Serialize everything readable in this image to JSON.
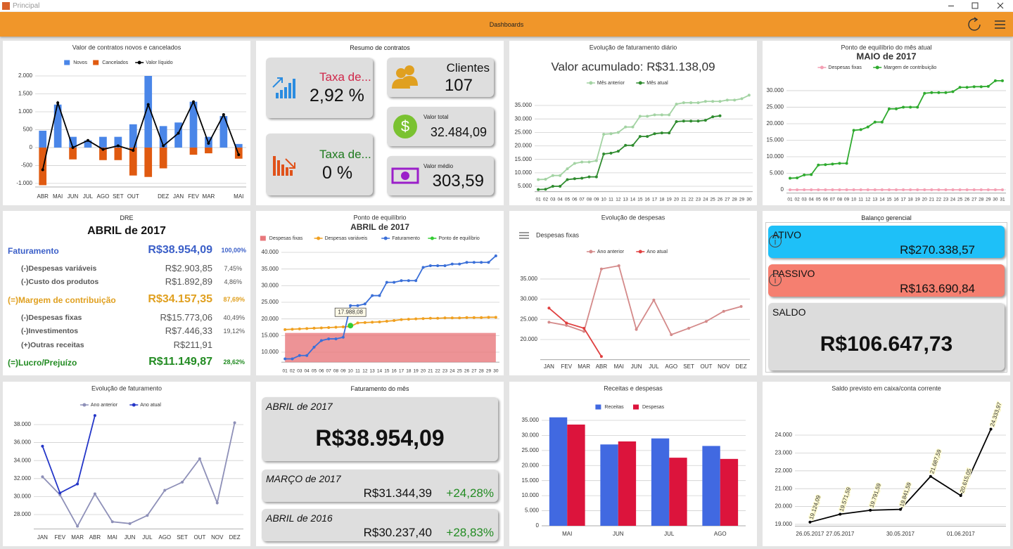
{
  "window": {
    "title": "Principal"
  },
  "header": {
    "title": "Dashboards"
  },
  "chart_data": [
    {
      "type": "bar",
      "title": "Valor de contratos  novos e cancelados",
      "legend": "top",
      "bar_mode": "overlay",
      "categories": [
        "ABR",
        "MAI",
        "JUN",
        "JUL",
        "AGO",
        "SET",
        "OUT",
        null,
        "DEZ",
        "JAN",
        "FEV",
        "MAR",
        null,
        "MAI"
      ],
      "series": [
        {
          "name": "Novos",
          "color": "#4a86e8",
          "values": [
            470,
            1200,
            300,
            200,
            300,
            300,
            650,
            2000,
            600,
            700,
            1280,
            300,
            880,
            100
          ]
        },
        {
          "name": "Cancelados",
          "color": "#e05a10",
          "values": [
            -1050,
            0,
            -330,
            0,
            -350,
            -350,
            -780,
            -820,
            -580,
            0,
            -200,
            -160,
            0,
            -310
          ]
        },
        {
          "name": "Valor líquido",
          "type": "line",
          "color": "#000000",
          "values": [
            -620,
            1250,
            0,
            200,
            -50,
            50,
            -80,
            1200,
            50,
            400,
            1280,
            120,
            920,
            -200
          ]
        }
      ],
      "ylim": [
        -1100,
        2000
      ],
      "yticks": [
        {
          "value": -1000,
          "label": "-1.000"
        },
        -500,
        0,
        500,
        {
          "value": 1000,
          "label": "1.000"
        },
        {
          "value": 1500,
          "label": "1.500"
        },
        {
          "value": 2000,
          "label": "2.000"
        }
      ],
      "grid": true,
      "markers": true
    },
    {
      "type": "line",
      "title": "Evolução de faturamento diário",
      "subtitle": "Valor acumulado: R$31.138,09",
      "legend": "top",
      "markers": true,
      "categories": [
        "01",
        "02",
        "03",
        "04",
        "05",
        "06",
        "07",
        "08",
        "09",
        "10",
        "11",
        "12",
        "13",
        "14",
        "15",
        "16",
        "17",
        "18",
        "19",
        "20",
        "21",
        "22",
        "23",
        "24",
        "25",
        "26",
        "27",
        "28",
        "29",
        "30"
      ],
      "series": [
        {
          "name": "Mês anterior",
          "color": "#a3d3a3",
          "values": [
            7500,
            7600,
            9000,
            9000,
            11500,
            13500,
            14000,
            14000,
            14500,
            24300,
            24500,
            25000,
            27000,
            27000,
            31000,
            31000,
            31500,
            31500,
            31500,
            35500,
            36000,
            36000,
            36000,
            36500,
            36500,
            36500,
            37000,
            37000,
            37500,
            38800
          ]
        },
        {
          "name": "Mês atual",
          "color": "#2e8b2e",
          "values": [
            3800,
            3900,
            5000,
            5000,
            7500,
            7800,
            8000,
            8500,
            8500,
            17000,
            17300,
            18000,
            20200,
            20200,
            23500,
            23500,
            24500,
            24800,
            24800,
            29000,
            29200,
            29200,
            29200,
            29500,
            30800,
            31138.09,
            null,
            null,
            null,
            null
          ]
        }
      ],
      "ylim": [
        3000,
        38000
      ],
      "yticks": [
        {
          "value": 5000,
          "label": "5.000"
        },
        {
          "value": 10000,
          "label": "10.000"
        },
        {
          "value": 15000,
          "label": "15.000"
        },
        {
          "value": 20000,
          "label": "20.000"
        },
        {
          "value": 25000,
          "label": "25.000"
        },
        {
          "value": 30000,
          "label": "30.000"
        },
        {
          "value": 35000,
          "label": "35.000"
        }
      ],
      "grid": true
    },
    {
      "type": "line",
      "title": "Ponto de equilíbrio do mês atual",
      "subtitle": "MAIO de 2017",
      "legend": "top",
      "markers": true,
      "categories": [
        "01",
        "02",
        "03",
        "04",
        "05",
        "06",
        "07",
        "08",
        "09",
        "10",
        "11",
        "12",
        "13",
        "14",
        "15",
        "16",
        "17",
        "18",
        "19",
        "20",
        "21",
        "22",
        "23",
        "24",
        "25",
        "26",
        "27",
        "28",
        "29",
        "30",
        "31"
      ],
      "series": [
        {
          "name": "Despesas fixas",
          "color": "#f4a0b4",
          "values": [
            0,
            0,
            0,
            0,
            0,
            0,
            0,
            0,
            0,
            0,
            0,
            0,
            0,
            0,
            0,
            0,
            0,
            0,
            0,
            0,
            0,
            0,
            0,
            0,
            0,
            0,
            0,
            0,
            0,
            0,
            0
          ]
        },
        {
          "name": "Margem de contribuição",
          "color": "#2eaa2e",
          "values": [
            3500,
            3600,
            4500,
            4600,
            7500,
            7600,
            7800,
            8000,
            8000,
            18000,
            18200,
            19000,
            20500,
            20500,
            24500,
            24500,
            25000,
            25000,
            25000,
            29200,
            29400,
            29400,
            29400,
            29700,
            31000,
            31000,
            31200,
            31200,
            31300,
            33000,
            33000
          ]
        }
      ],
      "ylim": [
        -1000,
        33500
      ],
      "yticks": [
        0,
        {
          "value": 5000,
          "label": "5.000"
        },
        {
          "value": 10000,
          "label": "10.000"
        },
        {
          "value": 15000,
          "label": "15.000"
        },
        {
          "value": 20000,
          "label": "20.000"
        },
        {
          "value": 25000,
          "label": "25.000"
        },
        {
          "value": 30000,
          "label": "30.000"
        }
      ],
      "grid": true
    },
    {
      "type": "line",
      "title": "Ponto de equilíbrio",
      "subtitle": "ABRIL de 2017",
      "legend": "top",
      "markers": true,
      "categories": [
        "01",
        "02",
        "03",
        "04",
        "05",
        "06",
        "07",
        "08",
        "09",
        "10",
        "11",
        "12",
        "13",
        "14",
        "15",
        "16",
        "17",
        "18",
        "19",
        "20",
        "21",
        "22",
        "23",
        "24",
        "25",
        "26",
        "27",
        "28",
        "29",
        "30"
      ],
      "series": [
        {
          "name": "Despesas fixas",
          "type": "area",
          "color": "#e8787c",
          "values": [
            15773.06,
            15773.06,
            15773.06,
            15773.06,
            15773.06,
            15773.06,
            15773.06,
            15773.06,
            15773.06,
            15773.06,
            15773.06,
            15773.06,
            15773.06,
            15773.06,
            15773.06,
            15773.06,
            15773.06,
            15773.06,
            15773.06,
            15773.06,
            15773.06,
            15773.06,
            15773.06,
            15773.06,
            15773.06,
            15773.06,
            15773.06,
            15773.06,
            15773.06,
            15773.06
          ]
        },
        {
          "name": "Despesas variáveis",
          "color": "#f0a020",
          "values": [
            16800,
            16900,
            17000,
            17100,
            17200,
            17300,
            17400,
            17500,
            17600,
            17700,
            18800,
            18900,
            19000,
            19100,
            19300,
            19500,
            19800,
            19900,
            20000,
            20100,
            20200,
            20200,
            20300,
            20300,
            20300,
            20400,
            20400,
            20400,
            20500,
            20500
          ]
        },
        {
          "name": "Faturamento",
          "color": "#3a6fd8",
          "values": [
            8000,
            8000,
            9000,
            9000,
            11500,
            13500,
            14000,
            14000,
            14500,
            24000,
            24000,
            24500,
            27000,
            27000,
            31000,
            31000,
            31500,
            31500,
            31500,
            35500,
            36000,
            36000,
            36000,
            36500,
            36500,
            37000,
            37000,
            37000,
            37000,
            38954.09
          ]
        },
        {
          "name": "Ponto de equilíbrio",
          "type": "scatter",
          "color": "#33cc33",
          "x": [
            "10"
          ],
          "values": [
            17988.08
          ],
          "value_labels": [
            "17.988,08"
          ]
        }
      ],
      "ylim": [
        7000,
        41000
      ],
      "yticks": [
        {
          "value": 10000,
          "label": "10.000"
        },
        {
          "value": 15000,
          "label": "15.000"
        },
        {
          "value": 20000,
          "label": "20.000"
        },
        {
          "value": 25000,
          "label": "25.000"
        },
        {
          "value": 30000,
          "label": "30.000"
        },
        {
          "value": 35000,
          "label": "35.000"
        },
        {
          "value": 40000,
          "label": "40.000"
        }
      ],
      "grid": true
    },
    {
      "type": "line",
      "title": "Evolução de despesas",
      "menu_label": "Despesas fixas",
      "legend": "top",
      "markers": true,
      "categories": [
        "JAN",
        "FEV",
        "MAR",
        "ABR",
        "MAI",
        "JUN",
        "JUL",
        "AGO",
        "SET",
        "OUT",
        "NOV",
        "DEZ"
      ],
      "series": [
        {
          "name": "Ano anterior",
          "color": "#d48a8a",
          "values": [
            24300,
            23500,
            22000,
            37500,
            38300,
            22500,
            29800,
            21200,
            22800,
            24500,
            27000,
            28200
          ]
        },
        {
          "name": "Ano atual",
          "color": "#e04040",
          "values": [
            27800,
            24100,
            22800,
            15800,
            null,
            null,
            null,
            null,
            null,
            null,
            null,
            null
          ]
        }
      ],
      "ylim": [
        15000,
        39000
      ],
      "yticks": [
        {
          "value": 20000,
          "label": "20.000"
        },
        {
          "value": 25000,
          "label": "25.000"
        },
        {
          "value": 30000,
          "label": "30.000"
        },
        {
          "value": 35000,
          "label": "35.000"
        }
      ],
      "grid": true
    },
    {
      "type": "line",
      "title": "Evolução de faturamento",
      "legend": "top",
      "markers": true,
      "categories": [
        "JAN",
        "FEV",
        "MAR",
        "ABR",
        "MAI",
        "JUN",
        "JUL",
        "AGO",
        "SET",
        "OUT",
        "NOV",
        "DEZ"
      ],
      "series": [
        {
          "name": "Ano anterior",
          "color": "#8e90b8",
          "values": [
            32200,
            30200,
            26700,
            30300,
            27200,
            27000,
            27900,
            30700,
            31600,
            34200,
            29300,
            38200
          ]
        },
        {
          "name": "Ano atual",
          "color": "#2436c8",
          "values": [
            35600,
            30400,
            31400,
            39000,
            null,
            null,
            null,
            null,
            null,
            null,
            null,
            null
          ]
        }
      ],
      "ylim": [
        26400,
        39200
      ],
      "yticks": [
        {
          "value": 28000,
          "label": "28.000"
        },
        {
          "value": 30000,
          "label": "30.000"
        },
        {
          "value": 32000,
          "label": "32.000"
        },
        {
          "value": 34000,
          "label": "34.000"
        },
        {
          "value": 36000,
          "label": "36.000"
        },
        {
          "value": 38000,
          "label": "38.000"
        }
      ],
      "grid": true
    },
    {
      "type": "bar",
      "title": "Receitas e despesas",
      "legend": "top",
      "bar_mode": "grouped",
      "categories": [
        "MAI",
        "JUN",
        "JUL",
        "AGO"
      ],
      "series": [
        {
          "name": "Receitas",
          "color": "#4169e1",
          "values": [
            36000,
            27000,
            29000,
            26500
          ]
        },
        {
          "name": "Despesas",
          "color": "#dc143c",
          "values": [
            33600,
            28000,
            22600,
            22200
          ]
        }
      ],
      "ylim": [
        0,
        37000
      ],
      "yticks": [
        0,
        {
          "value": 5000,
          "label": "5.000"
        },
        {
          "value": 10000,
          "label": "10.000"
        },
        {
          "value": 15000,
          "label": "15.000"
        },
        {
          "value": 20000,
          "label": "20.000"
        },
        {
          "value": 25000,
          "label": "25.000"
        },
        {
          "value": 30000,
          "label": "30.000"
        },
        {
          "value": 35000,
          "label": "35.000"
        }
      ],
      "grid": true
    },
    {
      "type": "line",
      "title": "Saldo previsto em caixa/conta corrente",
      "markers": true,
      "categories": [
        "26.05.2017",
        "27.05.2017",
        null,
        "30.05.2017",
        null,
        "01.06.2017",
        null
      ],
      "series": [
        {
          "name": "Saldo",
          "color": "#000000",
          "values": [
            19124.09,
            19571.59,
            19791.59,
            19841.59,
            21687.59,
            20615.05,
            24333.97
          ],
          "value_labels": [
            "19.124,09",
            "19.571,59",
            "19.791,59",
            "19.841,59",
            "21.687,59",
            "20.615,05",
            "24.333,97"
          ]
        }
      ],
      "ylim": [
        18900,
        24800
      ],
      "yticks": [
        {
          "value": 19000,
          "label": "19.000"
        },
        {
          "value": 20000,
          "label": "20.000"
        },
        {
          "value": 21000,
          "label": "21.000"
        },
        {
          "value": 22000,
          "label": "22.000"
        },
        {
          "value": 23000,
          "label": "23.000"
        },
        {
          "value": 24000,
          "label": "24.000"
        }
      ],
      "grid": true
    }
  ],
  "contracts_summary": {
    "title": "Resumo de contratos",
    "tiles": [
      {
        "label": "Taxa de...",
        "value": "2,92 %"
      },
      {
        "label": "Taxa de...",
        "value": "0 %"
      },
      {
        "label": "Clientes",
        "value": "107"
      },
      {
        "label": "Valor total",
        "value": "32.484,09"
      },
      {
        "label": "Valor médio",
        "value": "303,59"
      }
    ]
  },
  "dre": {
    "title": "DRE",
    "period": "ABRIL de 2017",
    "rows": [
      {
        "label": "Faturamento",
        "value": "R$38.954,09",
        "percent": "100,00%"
      },
      {
        "label": "(-)Despesas variáveis",
        "value": "R$2.903,85",
        "percent": "7,45%"
      },
      {
        "label": "(-)Custo dos produtos",
        "value": "R$1.892,89",
        "percent": "4,86%"
      },
      {
        "label": "(=)Margem de contribuição",
        "value": "R$34.157,35",
        "percent": "87,69%"
      },
      {
        "label": "(-)Despesas fixas",
        "value": "R$15.773,06",
        "percent": "40,49%"
      },
      {
        "label": "(-)Investimentos",
        "value": "R$7.446,33",
        "percent": "19,12%"
      },
      {
        "label": "(+)Outras receitas",
        "value": "R$211,91"
      },
      {
        "label": "(=)Lucro/Prejuízo",
        "value": "R$11.149,87",
        "percent": "28,62%"
      }
    ]
  },
  "balance": {
    "title": "Balanço gerencial",
    "items": [
      {
        "label": "ATIVO",
        "value": "R$270.338,57"
      },
      {
        "label": "PASSIVO",
        "value": "R$163.690,84"
      },
      {
        "label": "SALDO",
        "value": "R$106.647,73"
      }
    ]
  },
  "monthly_revenue": {
    "title": "Faturamento do mês",
    "items": [
      {
        "period": "ABRIL de 2017",
        "value": "R$38.954,09"
      },
      {
        "period": "MARÇO de 2017",
        "value": "R$31.344,39",
        "change": "+24,28%"
      },
      {
        "period": "ABRIL de 2016",
        "value": "R$30.237,40",
        "change": "+28,83%"
      }
    ]
  }
}
